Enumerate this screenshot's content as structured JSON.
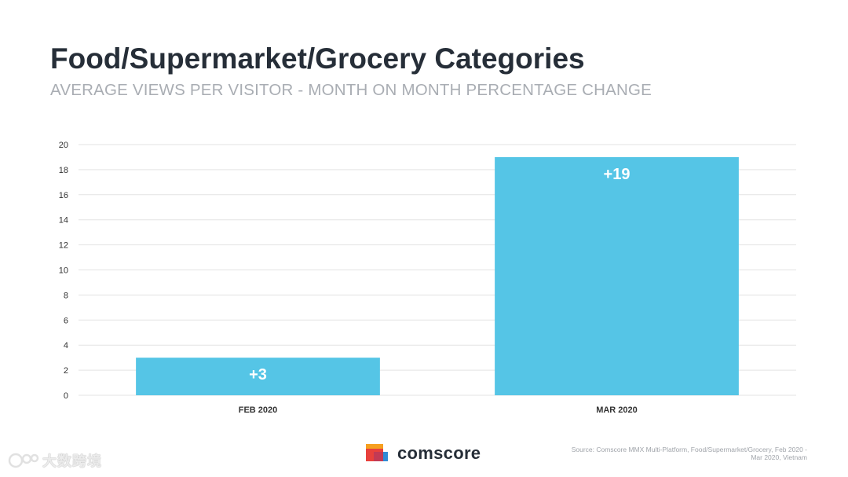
{
  "header": {
    "title": "Food/Supermarket/Grocery Categories",
    "subtitle": "AVERAGE VIEWS PER VISITOR - MONTH ON MONTH PERCENTAGE CHANGE"
  },
  "chart_data": {
    "type": "bar",
    "categories": [
      "FEB 2020",
      "MAR 2020"
    ],
    "values": [
      3,
      19
    ],
    "data_labels": [
      "+3",
      "+19"
    ],
    "yticks": [
      0,
      2,
      4,
      6,
      8,
      10,
      12,
      14,
      16,
      18,
      20
    ],
    "ylim": [
      0,
      20
    ],
    "grid": true,
    "bar_color": "#55c5e6",
    "title": "Food/Supermarket/Grocery Categories",
    "xlabel": "",
    "ylabel": ""
  },
  "footer": {
    "logo_text": "comscore",
    "source_line1": "Source: Comscore MMX Multi-Platform, Food/Supermarket/Grocery, Feb 2020 -",
    "source_line2": "Mar 2020, Vietnam",
    "watermark_text": "大数跨境"
  },
  "colors": {
    "title": "#262e38",
    "subtitle": "#a9adb3",
    "grid": "#e3e3e3",
    "bar": "#55c5e6",
    "logo_red": "#e8413c",
    "logo_orange": "#f6a020",
    "logo_blue": "#2f8bd6"
  }
}
